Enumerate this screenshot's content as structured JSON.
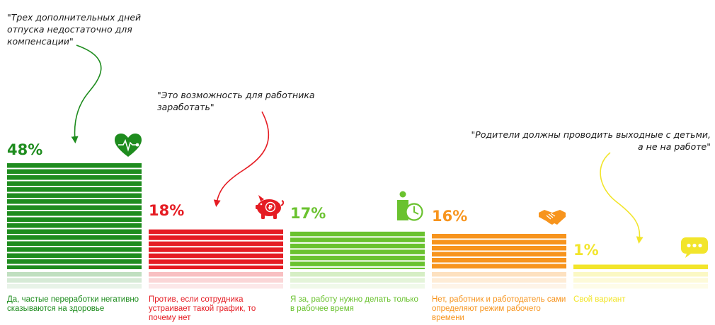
{
  "chart_data": {
    "type": "bar",
    "ylim": [
      0,
      48
    ],
    "categories": [
      "Да, частые переработки негативно сказываются на здоровье",
      "Против, если сотрудника устраивает такой график, то почему нет",
      "Я за, работу нужно делать только в рабочее время",
      "Нет, работник и работодатель сами определяют режим рабочего времени",
      "Свой вариант"
    ],
    "values": [
      48,
      18,
      17,
      16,
      1
    ],
    "value_labels": [
      "48%",
      "18%",
      "17%",
      "16%",
      "1%"
    ],
    "colors": [
      "#1e8c1e",
      "#e51c23",
      "#6ac22f",
      "#f7941d",
      "#f2e52b"
    ],
    "icons": [
      "heart-pulse-icon",
      "piggy-bank-icon",
      "person-clock-icon",
      "handshake-icon",
      "speech-bubble-icon"
    ],
    "annotations": [
      "\"Трех дополнительных дней\nотпуска недостаточно для\nкомпенсации\"",
      "\"Это возможность для работника\nзаработать\"",
      "\"Родители должны проводить выходные с детьми,\nа не на работе\""
    ]
  }
}
